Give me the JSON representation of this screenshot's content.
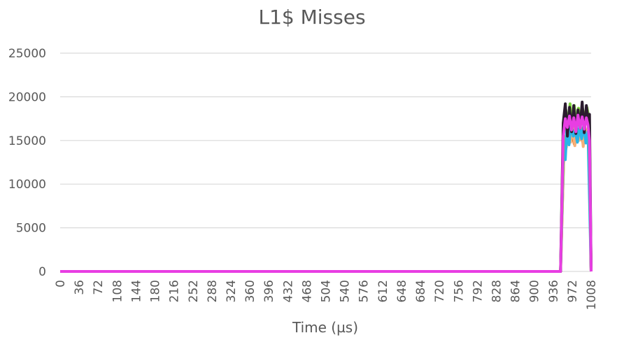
{
  "chart_data": {
    "type": "line",
    "title": "L1$ Misses",
    "xlabel": "Time (µs)",
    "ylabel": "",
    "ylim": [
      0,
      25000
    ],
    "xlim": [
      0,
      1008
    ],
    "y_ticks": [
      0,
      5000,
      10000,
      15000,
      20000,
      25000
    ],
    "x_ticks": [
      0,
      36,
      72,
      108,
      144,
      180,
      216,
      252,
      288,
      324,
      360,
      396,
      432,
      468,
      504,
      540,
      576,
      612,
      648,
      684,
      720,
      756,
      792,
      828,
      864,
      900,
      936,
      972,
      1008
    ],
    "grid": "horizontal",
    "legend": "none",
    "series": [
      {
        "color": "#e83ee3",
        "x": [
          0,
          950,
          955,
          959,
          963,
          967,
          971,
          975,
          979,
          983,
          987,
          991,
          995,
          999,
          1002,
          1005,
          1008
        ],
        "values": [
          0,
          0,
          15500,
          17500,
          16500,
          17800,
          16200,
          17600,
          16000,
          17900,
          16400,
          17700,
          16300,
          17600,
          16800,
          15000,
          0
        ]
      },
      {
        "color": "#2b1b2e",
        "x": [
          0,
          950,
          955,
          959,
          963,
          967,
          971,
          975,
          979,
          983,
          987,
          991,
          995,
          999,
          1002,
          1005,
          1008
        ],
        "values": [
          0,
          0,
          17000,
          19200,
          15500,
          18800,
          16000,
          19000,
          15800,
          18500,
          16400,
          19400,
          15900,
          19000,
          17500,
          18000,
          0
        ]
      },
      {
        "color": "#7dd63c",
        "x": [
          0,
          950,
          956,
          960,
          964,
          968,
          972,
          976,
          980,
          984,
          988,
          992,
          996,
          1000,
          1004,
          1008
        ],
        "values": [
          0,
          0,
          16500,
          18500,
          16800,
          19200,
          17000,
          19000,
          16500,
          18700,
          17200,
          18600,
          16900,
          18800,
          17500,
          0
        ]
      },
      {
        "color": "#29b5e8",
        "x": [
          0,
          950,
          956,
          959,
          962,
          966,
          970,
          974,
          978,
          982,
          986,
          990,
          994,
          998,
          1002,
          1008
        ],
        "values": [
          0,
          0,
          15000,
          12800,
          16500,
          14500,
          17000,
          15500,
          16000,
          14800,
          16600,
          15200,
          16800,
          14700,
          16000,
          0
        ]
      },
      {
        "color": "#f5b07a",
        "x": [
          0,
          950,
          957,
          961,
          965,
          969,
          973,
          977,
          981,
          985,
          989,
          993,
          997,
          1001,
          1004,
          1008
        ],
        "values": [
          0,
          0,
          15500,
          14200,
          16300,
          14800,
          16600,
          14400,
          16200,
          15000,
          16500,
          14300,
          16400,
          15200,
          15800,
          0
        ]
      },
      {
        "color": "#e8761c",
        "x": [
          0,
          950,
          957,
          960,
          964,
          968,
          972,
          976,
          980,
          984,
          988,
          992,
          996,
          1000,
          1004,
          1008
        ],
        "values": [
          0,
          0,
          15200,
          14000,
          16000,
          15000,
          15800,
          14600,
          16200,
          15200,
          15600,
          14800,
          16000,
          15400,
          15700,
          0
        ]
      }
    ]
  }
}
